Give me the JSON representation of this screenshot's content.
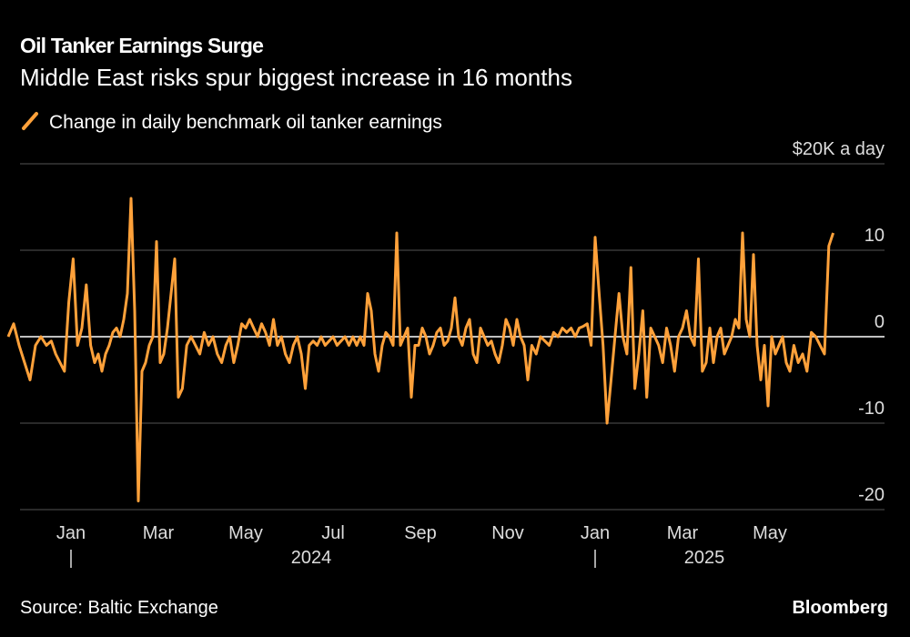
{
  "chart_data": {
    "type": "line",
    "title": "Oil Tanker Earnings Surge",
    "subtitle": "Middle East risks spur biggest increase in 16 months",
    "source": "Source: Baltic Exchange",
    "brand": "Bloomberg",
    "x": [
      "2023-12",
      "2023-12",
      "2023-12",
      "2023-12",
      "2023-12",
      "2023-12",
      "2023-12",
      "2023-12",
      "2024-01",
      "2024-01",
      "2024-01",
      "2024-01",
      "2024-01",
      "2024-01",
      "2024-01",
      "2024-01",
      "2024-01",
      "2024-01",
      "2024-02",
      "2024-02",
      "2024-02",
      "2024-02",
      "2024-02",
      "2024-02",
      "2024-02",
      "2024-02",
      "2024-02",
      "2024-02",
      "2024-02",
      "2024-02",
      "2024-03",
      "2024-03",
      "2024-03",
      "2024-03",
      "2024-03",
      "2024-03",
      "2024-03",
      "2024-03",
      "2024-03",
      "2024-03",
      "2024-03",
      "2024-03",
      "2024-04",
      "2024-04",
      "2024-04",
      "2024-04",
      "2024-04",
      "2024-04",
      "2024-04",
      "2024-04",
      "2024-04",
      "2024-04",
      "2024-05",
      "2024-05",
      "2024-05",
      "2024-05",
      "2024-05",
      "2024-05",
      "2024-05",
      "2024-05",
      "2024-05",
      "2024-05",
      "2024-05",
      "2024-06",
      "2024-06",
      "2024-06",
      "2024-06",
      "2024-06",
      "2024-06",
      "2024-06",
      "2024-06",
      "2024-06",
      "2024-06",
      "2024-06",
      "2024-07",
      "2024-07",
      "2024-07",
      "2024-07",
      "2024-07",
      "2024-07",
      "2024-07",
      "2024-07",
      "2024-07",
      "2024-07",
      "2024-07",
      "2024-08",
      "2024-08",
      "2024-08",
      "2024-08",
      "2024-08",
      "2024-08",
      "2024-08",
      "2024-08",
      "2024-08",
      "2024-08",
      "2024-08",
      "2024-08",
      "2024-09",
      "2024-09",
      "2024-09",
      "2024-09",
      "2024-09",
      "2024-09",
      "2024-09",
      "2024-09",
      "2024-09",
      "2024-09",
      "2024-09",
      "2024-09",
      "2024-10",
      "2024-10",
      "2024-10",
      "2024-10",
      "2024-10",
      "2024-10",
      "2024-10",
      "2024-10",
      "2024-10",
      "2024-10",
      "2024-10",
      "2024-10",
      "2024-11",
      "2024-11",
      "2024-11",
      "2024-11",
      "2024-11",
      "2024-11",
      "2024-11",
      "2024-11",
      "2024-11",
      "2024-11",
      "2024-11",
      "2024-11",
      "2024-12",
      "2024-12",
      "2024-12",
      "2024-12",
      "2024-12",
      "2024-12",
      "2024-12",
      "2024-12",
      "2024-12",
      "2024-12",
      "2025-01",
      "2025-01",
      "2025-01",
      "2025-01",
      "2025-01",
      "2025-01",
      "2025-01",
      "2025-01",
      "2025-01",
      "2025-01",
      "2025-01",
      "2025-02",
      "2025-02",
      "2025-02",
      "2025-02",
      "2025-02",
      "2025-02",
      "2025-02",
      "2025-02",
      "2025-02",
      "2025-02",
      "2025-02",
      "2025-03",
      "2025-03",
      "2025-03",
      "2025-03",
      "2025-03",
      "2025-03",
      "2025-03",
      "2025-03",
      "2025-03",
      "2025-03",
      "2025-03",
      "2025-04",
      "2025-04",
      "2025-04",
      "2025-04",
      "2025-04",
      "2025-04",
      "2025-04",
      "2025-04",
      "2025-04",
      "2025-04",
      "2025-04",
      "2025-04",
      "2025-05",
      "2025-05",
      "2025-05",
      "2025-05",
      "2025-05",
      "2025-05",
      "2025-05",
      "2025-05",
      "2025-05",
      "2025-05",
      "2025-05",
      "2025-05",
      "2025-06",
      "2025-06",
      "2025-06",
      "2025-06",
      "2025-06",
      "2025-06",
      "2025-06",
      "2025-06",
      "2025-06",
      "2025-06"
    ],
    "series": [
      {
        "name": "Change in daily benchmark oil tanker earnings",
        "color": "#ffa13a",
        "values": [
          0,
          1.5,
          -1,
          -3,
          -5,
          -1,
          0,
          -1,
          -0.5,
          -2,
          -3,
          -4,
          4,
          9,
          -1,
          1,
          6,
          -1,
          -3,
          -2,
          -4,
          -2,
          -1,
          0.5,
          1,
          0,
          2,
          5,
          16,
          3,
          -19,
          -4,
          -3,
          -1,
          0,
          11,
          -3,
          -2,
          1,
          5,
          9,
          -7,
          -6,
          -1,
          0,
          -1,
          -2,
          0.5,
          -1,
          0,
          -2,
          -3,
          -1,
          0,
          -3,
          -1,
          1.5,
          1,
          2,
          1,
          0,
          1.5,
          0.5,
          -1,
          2,
          -1,
          0,
          -2,
          -3,
          -1,
          0,
          -2,
          -6,
          -1,
          -0.5,
          -1,
          0,
          -1,
          -0.5,
          0,
          -1,
          -0.5,
          0,
          -1,
          0,
          -1,
          0,
          -1,
          5,
          3,
          -2,
          -4,
          -1,
          0.5,
          0,
          -1,
          12,
          -1,
          0,
          1,
          -7,
          -1,
          -1,
          1,
          0,
          -2,
          -1,
          0.5,
          1,
          -1,
          -0.5,
          1,
          4.5,
          0,
          -1,
          1,
          2,
          -2,
          -3,
          1,
          0,
          -1,
          -0.5,
          -2,
          -3,
          -1,
          2,
          1,
          -1,
          2,
          0,
          -1,
          -5,
          -1,
          -2,
          0,
          -0.5,
          -1,
          0.5,
          0,
          1,
          0.5,
          1,
          0,
          1,
          1.2,
          1.5,
          -1,
          11.5,
          5,
          -1,
          -10,
          -5,
          0,
          5,
          0,
          -2,
          8,
          -6,
          -2,
          3,
          -7,
          1,
          0,
          -1,
          -3,
          1,
          -1,
          -4,
          0,
          1,
          3,
          0,
          -1,
          9,
          -4,
          -3,
          1,
          -3,
          0,
          1,
          -2,
          -1,
          0,
          2,
          1,
          12,
          2,
          0,
          9.5,
          -1,
          -5,
          -1,
          -8,
          0,
          -2,
          -1,
          0,
          -3,
          -4,
          -1,
          -3,
          -2,
          -4,
          0.5,
          0,
          -1,
          -2,
          10.5,
          12
        ]
      }
    ],
    "ylim": [
      -20,
      20
    ],
    "yticks": [
      {
        "value": 20,
        "label": "$20K a day"
      },
      10,
      0,
      -10,
      -20
    ],
    "xticks": [
      {
        "value": "2024-01",
        "label": "Jan"
      },
      {
        "value": "2024-03",
        "label": "Mar"
      },
      {
        "value": "2024-05",
        "label": "May"
      },
      {
        "value": "2024-07",
        "label": "Jul"
      },
      {
        "value": "2024-09",
        "label": "Sep"
      },
      {
        "value": "2024-11",
        "label": "Nov"
      },
      {
        "value": "2025-01",
        "label": "Jan"
      },
      {
        "value": "2025-03",
        "label": "Mar"
      },
      {
        "value": "2025-05",
        "label": "May"
      }
    ],
    "years": [
      "2024",
      "2025"
    ],
    "grid": true
  }
}
